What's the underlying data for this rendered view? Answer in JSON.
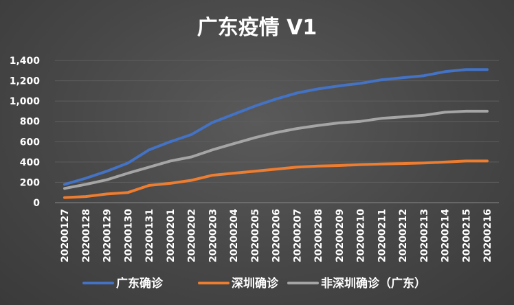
{
  "chart_data": {
    "type": "line",
    "title": "广东疫情 V1",
    "categories": [
      "20200127",
      "20200128",
      "20200129",
      "20200130",
      "20200131",
      "20200201",
      "20200202",
      "20200203",
      "20200204",
      "20200205",
      "20200206",
      "20200207",
      "20200208",
      "20200209",
      "20200210",
      "20200211",
      "20200212",
      "20200213",
      "20200214",
      "20200215",
      "20200216"
    ],
    "yticks": [
      "0",
      "200",
      "400",
      "600",
      "800",
      "1,000",
      "1,200",
      "1,400"
    ],
    "ylim": [
      0,
      1400
    ],
    "grid": true,
    "legend_position": "bottom",
    "series": [
      {
        "name": "广东确诊",
        "color": "#4472C4",
        "values": [
          180,
          240,
          310,
          390,
          520,
          600,
          670,
          790,
          870,
          950,
          1020,
          1080,
          1120,
          1150,
          1175,
          1210,
          1230,
          1250,
          1290,
          1310,
          1310
        ]
      },
      {
        "name": "深圳确诊",
        "color": "#ED7D31",
        "values": [
          50,
          60,
          85,
          100,
          170,
          190,
          220,
          270,
          290,
          310,
          330,
          350,
          360,
          365,
          375,
          380,
          385,
          390,
          400,
          410,
          410
        ]
      },
      {
        "name": "非深圳确诊（广东）",
        "color": "#A5A5A5",
        "values": [
          140,
          180,
          225,
          290,
          350,
          410,
          450,
          520,
          580,
          640,
          690,
          730,
          760,
          785,
          800,
          830,
          845,
          860,
          890,
          900,
          900
        ]
      }
    ]
  }
}
